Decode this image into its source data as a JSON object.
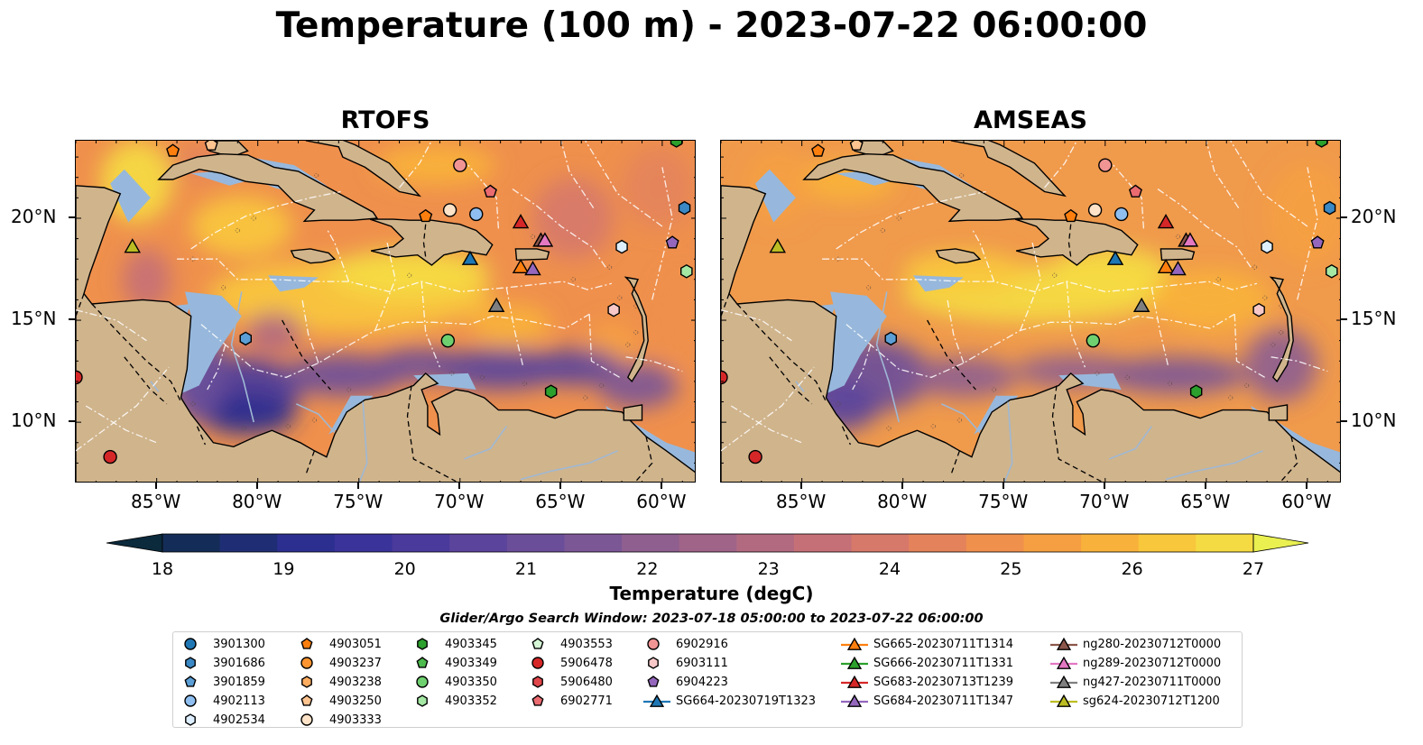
{
  "title": "Temperature (100 m) - 2023-07-22 06:00:00",
  "panels": [
    {
      "title": "RTOFS",
      "variant": "rtofs"
    },
    {
      "title": "AMSEAS",
      "variant": "amseas"
    }
  ],
  "axes": {
    "lon_ticks": [
      "85°W",
      "80°W",
      "75°W",
      "70°W",
      "65°W",
      "60°W"
    ],
    "lat_ticks": [
      "20°N",
      "15°N",
      "10°N"
    ],
    "lon_range": [
      -89.0,
      -58.3
    ],
    "lat_range": [
      7.0,
      23.8
    ]
  },
  "colorbar": {
    "title": "Temperature (degC)",
    "min": 18,
    "max": 27,
    "step": 0.5,
    "extend": "both",
    "tick_labels": [
      "18",
      "19",
      "20",
      "21",
      "22",
      "23",
      "24",
      "25",
      "26",
      "27"
    ],
    "colors": [
      "#0b2a3c",
      "#142d58",
      "#1f2e74",
      "#2c2f8f",
      "#3a339a",
      "#4a3a9c",
      "#5a449c",
      "#6b4e9a",
      "#7c5796",
      "#8e5f8f",
      "#a06488",
      "#b26a80",
      "#c57076",
      "#d6796a",
      "#e4835b",
      "#ef904d",
      "#f59f42",
      "#f8b23b",
      "#f8c73c",
      "#f5db43",
      "#e9f050"
    ]
  },
  "search_window": "Glider/Argo Search Window: 2023-07-18 05:00:00 to 2023-07-22 06:00:00",
  "legend": {
    "columns": [
      [
        {
          "label": "3901300",
          "marker": "circle",
          "color": "#1f77b4"
        },
        {
          "label": "3901686",
          "marker": "hexagon",
          "color": "#3a88c4"
        },
        {
          "label": "3901859",
          "marker": "pentagon",
          "color": "#5b9fd6"
        },
        {
          "label": "4902113",
          "marker": "circle",
          "color": "#8fbff0"
        },
        {
          "label": "4902534",
          "marker": "hexagon",
          "color": "#ddeeff"
        }
      ],
      [
        {
          "label": "4903051",
          "marker": "pentagon",
          "color": "#ff7f0e"
        },
        {
          "label": "4903237",
          "marker": "circle",
          "color": "#ff9530"
        },
        {
          "label": "4903238",
          "marker": "hexagon",
          "color": "#ffad60"
        },
        {
          "label": "4903250",
          "marker": "pentagon",
          "color": "#ffc48f"
        },
        {
          "label": "4903333",
          "marker": "circle",
          "color": "#ffe3c8"
        }
      ],
      [
        {
          "label": "4903345",
          "marker": "hexagon",
          "color": "#2ca02c"
        },
        {
          "label": "4903349",
          "marker": "pentagon",
          "color": "#4dbb4d"
        },
        {
          "label": "4903350",
          "marker": "circle",
          "color": "#6fd06f"
        },
        {
          "label": "4903352",
          "marker": "hexagon",
          "color": "#a4e8a4"
        }
      ],
      [
        {
          "label": "4903553",
          "marker": "pentagon",
          "color": "#d6f7d6"
        },
        {
          "label": "5906478",
          "marker": "circle",
          "color": "#d62728"
        },
        {
          "label": "5906480",
          "marker": "hexagon",
          "color": "#e0464a"
        },
        {
          "label": "6902771",
          "marker": "pentagon",
          "color": "#ea6b70"
        }
      ],
      [
        {
          "label": "6902916",
          "marker": "circle",
          "color": "#f09494"
        },
        {
          "label": "6903111",
          "marker": "hexagon",
          "color": "#f8c8c8"
        },
        {
          "label": "6904223",
          "marker": "pentagon",
          "color": "#9467bd"
        },
        {
          "label": "SG664-20230719T1323",
          "marker": "triangle-line",
          "color": "#1f77b4"
        }
      ],
      [
        {
          "label": "SG665-20230711T1314",
          "marker": "triangle-line",
          "color": "#ff7f0e"
        },
        {
          "label": "SG666-20230711T1331",
          "marker": "triangle-line",
          "color": "#2ca02c"
        },
        {
          "label": "SG683-20230713T1239",
          "marker": "triangle-line",
          "color": "#d62728"
        },
        {
          "label": "SG684-20230711T1347",
          "marker": "triangle-line",
          "color": "#9467bd"
        }
      ],
      [
        {
          "label": "ng280-20230712T0000",
          "marker": "triangle-line",
          "color": "#8c564b"
        },
        {
          "label": "ng289-20230712T0000",
          "marker": "triangle-line",
          "color": "#e377c2"
        },
        {
          "label": "ng427-20230711T0000",
          "marker": "triangle-line",
          "color": "#7f7f7f"
        },
        {
          "label": "sg624-20230712T1200",
          "marker": "triangle-line",
          "color": "#bcbd22"
        }
      ]
    ]
  },
  "markers": [
    {
      "lon": -87.3,
      "lat": 8.3,
      "marker": "circle",
      "color": "#d62728"
    },
    {
      "lon": -89.0,
      "lat": 12.2,
      "marker": "circle",
      "color": "#d62728"
    },
    {
      "lon": -86.2,
      "lat": 18.6,
      "marker": "triangle",
      "color": "#bcbd22"
    },
    {
      "lon": -84.2,
      "lat": 23.3,
      "marker": "pentagon",
      "color": "#ff7f0e"
    },
    {
      "lon": -82.3,
      "lat": 23.6,
      "marker": "pentagon",
      "color": "#ffc48f"
    },
    {
      "lon": -80.6,
      "lat": 14.1,
      "marker": "hexagon",
      "color": "#5b9fd6"
    },
    {
      "lon": -71.7,
      "lat": 20.1,
      "marker": "pentagon",
      "color": "#ff7f0e"
    },
    {
      "lon": -70.5,
      "lat": 20.4,
      "marker": "circle",
      "color": "#ffe3c8"
    },
    {
      "lon": -70.0,
      "lat": 22.6,
      "marker": "circle",
      "color": "#f09494"
    },
    {
      "lon": -69.2,
      "lat": 20.2,
      "marker": "circle",
      "color": "#8fbff0"
    },
    {
      "lon": -68.5,
      "lat": 21.3,
      "marker": "pentagon",
      "color": "#ea6b70"
    },
    {
      "lon": -67.0,
      "lat": 19.8,
      "marker": "triangle",
      "color": "#d62728"
    },
    {
      "lon": -69.5,
      "lat": 18.0,
      "marker": "triangle",
      "color": "#1f77b4"
    },
    {
      "lon": -67.0,
      "lat": 17.6,
      "marker": "triangle",
      "color": "#ff7f0e"
    },
    {
      "lon": -66.4,
      "lat": 17.5,
      "marker": "triangle",
      "color": "#9467bd"
    },
    {
      "lon": -66.0,
      "lat": 18.9,
      "marker": "triangle",
      "color": "#8c564b"
    },
    {
      "lon": -65.8,
      "lat": 18.9,
      "marker": "triangle",
      "color": "#e377c2"
    },
    {
      "lon": -68.2,
      "lat": 15.7,
      "marker": "triangle",
      "color": "#7f7f7f"
    },
    {
      "lon": -70.6,
      "lat": 14.0,
      "marker": "circle",
      "color": "#6fd06f"
    },
    {
      "lon": -65.5,
      "lat": 11.5,
      "marker": "hexagon",
      "color": "#2ca02c"
    },
    {
      "lon": -62.4,
      "lat": 15.5,
      "marker": "hexagon",
      "color": "#f8c8c8"
    },
    {
      "lon": -62.0,
      "lat": 18.6,
      "marker": "hexagon",
      "color": "#ddeeff"
    },
    {
      "lon": -59.5,
      "lat": 18.8,
      "marker": "pentagon",
      "color": "#9467bd"
    },
    {
      "lon": -58.9,
      "lat": 20.5,
      "marker": "hexagon",
      "color": "#3a88c4"
    },
    {
      "lon": -58.8,
      "lat": 17.4,
      "marker": "hexagon",
      "color": "#a4e8a4"
    },
    {
      "lon": -59.3,
      "lat": 23.8,
      "marker": "hexagon",
      "color": "#2ca02c"
    }
  ]
}
